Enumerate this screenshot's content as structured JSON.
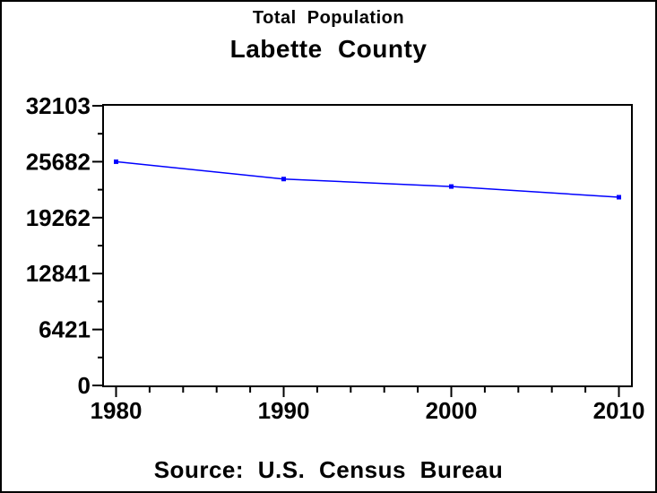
{
  "window": {
    "background": "#FFFFFF",
    "border_color": "#000000"
  },
  "chart_data": {
    "type": "line",
    "title": "Total Population",
    "subtitle": "Labette County",
    "source": "Source: U.S. Census Bureau",
    "x": [
      1980,
      1990,
      2000,
      2010
    ],
    "series": [
      {
        "name": "Total Population",
        "color": "#0000FF",
        "marker": "square",
        "values": [
          25682,
          23693,
          22835,
          21607
        ]
      }
    ],
    "xlim": [
      1980,
      2010
    ],
    "ylim": [
      0,
      32103
    ],
    "x_major_ticks": [
      1980,
      1990,
      2000,
      2010
    ],
    "x_minor_ticks": [
      1982,
      1984,
      1986,
      1988,
      1992,
      1994,
      1996,
      1998,
      2002,
      2004,
      2006,
      2008
    ],
    "y_major_tick_labels": [
      "0",
      "6421",
      "12841",
      "19262",
      "25682",
      "32103"
    ],
    "y_minor_ticks_between_majors": 1,
    "grid": false,
    "frame": true,
    "legend_position": "none",
    "axis_color": "#000000",
    "text_color": "#000000"
  }
}
